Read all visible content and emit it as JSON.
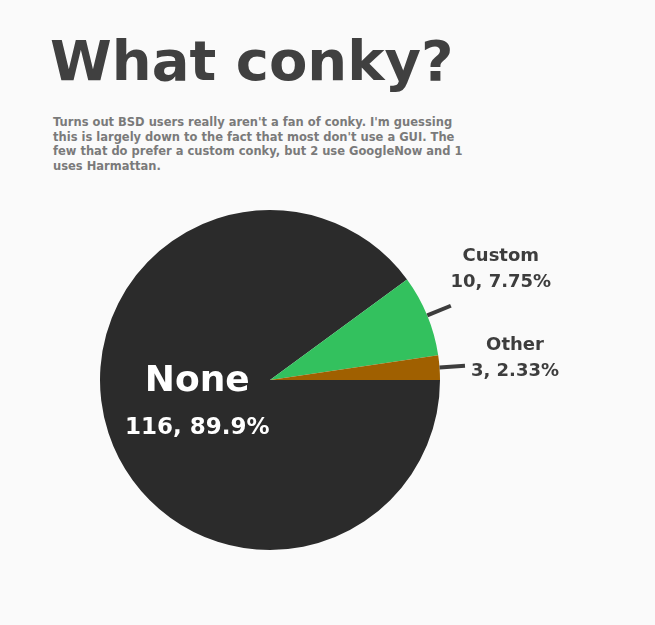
{
  "chart_data": {
    "type": "pie",
    "title": "What conky?",
    "subtitle": "Turns out BSD users really aren't a fan of conky. I'm guessing this is largely down to the fact that most don't use a GUI. The few that do prefer a custom conky, but 2 use GoogleNow and 1 uses Harmattan.",
    "categories": [
      "None",
      "Custom",
      "Other"
    ],
    "values": [
      116,
      10,
      3
    ],
    "value_labels": [
      "116, 89.9%",
      "10, 7.75%",
      "3, 2.33%"
    ],
    "colors": [
      "#2b2b2b",
      "#33c15e",
      "#a06000"
    ],
    "data_labels": true
  }
}
